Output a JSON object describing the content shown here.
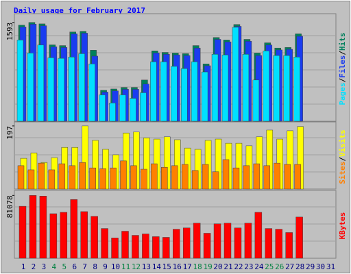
{
  "chart_data": [
    {
      "type": "bar",
      "title": "Daily usage for February 2017",
      "legend_separator": "/",
      "ylim": [
        0,
        1690
      ],
      "yticks": [
        1593
      ],
      "series": [
        {
          "name": "Hits",
          "color": "#00805c",
          "values": [
            1550,
            1593,
            1570,
            1232,
            1220,
            1440,
            1450,
            1145,
            500,
            520,
            545,
            545,
            665,
            1135,
            1110,
            1100,
            1090,
            1220,
            925,
            1350,
            1310,
            1560,
            1320,
            1100,
            1265,
            1180,
            1190,
            1410,
            null,
            null,
            null
          ]
        },
        {
          "name": "Files",
          "color": "#1a3cf0",
          "values": [
            1520,
            1565,
            1540,
            1200,
            1190,
            1410,
            1420,
            1050,
            470,
            490,
            515,
            515,
            600,
            1100,
            1080,
            1070,
            1060,
            1180,
            895,
            1320,
            1280,
            1530,
            1290,
            1060,
            1230,
            1150,
            1160,
            1370,
            null,
            null,
            null
          ]
        },
        {
          "name": "Pages",
          "color": "#00e0ff",
          "values": [
            1310,
            1100,
            1230,
            1025,
            1015,
            1035,
            1090,
            925,
            425,
            295,
            425,
            370,
            460,
            960,
            960,
            885,
            850,
            960,
            795,
            1080,
            1070,
            1515,
            1080,
            665,
            1135,
            1060,
            1060,
            1035,
            null,
            null,
            null
          ]
        }
      ]
    },
    {
      "type": "bar",
      "legend_separator": "/",
      "ylim": [
        0,
        201
      ],
      "yticks": [
        197
      ],
      "series": [
        {
          "name": "Visits",
          "color": "#ffff00",
          "values": [
            96,
            113,
            83,
            98,
            130,
            130,
            197,
            152,
            124,
            107,
            175,
            178,
            160,
            156,
            163,
            154,
            128,
            124,
            152,
            156,
            143,
            143,
            135,
            163,
            184,
            156,
            182,
            195,
            null,
            null,
            null
          ]
        },
        {
          "name": "Sites",
          "color": "#ff8000",
          "values": [
            73,
            60,
            81,
            60,
            79,
            73,
            83,
            66,
            64,
            66,
            88,
            73,
            62,
            79,
            68,
            73,
            77,
            58,
            77,
            54,
            92,
            66,
            73,
            79,
            73,
            81,
            77,
            77,
            null,
            null,
            null
          ]
        }
      ]
    },
    {
      "type": "bar",
      "ylim": [
        0,
        84000
      ],
      "yticks": [
        81078
      ],
      "categories": [
        "1",
        "2",
        "3",
        "4",
        "5",
        "6",
        "7",
        "8",
        "9",
        "10",
        "11",
        "12",
        "13",
        "14",
        "15",
        "16",
        "17",
        "18",
        "19",
        "20",
        "21",
        "22",
        "23",
        "24",
        "25",
        "26",
        "27",
        "28",
        "29",
        "30",
        "31"
      ],
      "tick_colors": [
        "#000080",
        "#000080",
        "#000080",
        "#008040",
        "#008040",
        "#000080",
        "#000080",
        "#000080",
        "#000080",
        "#000080",
        "#008040",
        "#008040",
        "#000080",
        "#000080",
        "#000080",
        "#000080",
        "#000080",
        "#008040",
        "#008040",
        "#000080",
        "#000080",
        "#000080",
        "#000080",
        "#000080",
        "#008040",
        "#008040",
        "#000080",
        "#000080",
        "#000080",
        "#000080",
        "#000080"
      ],
      "series": [
        {
          "name": "KBytes",
          "color": "#ff0000",
          "values": [
            67100,
            81078,
            80200,
            57500,
            59300,
            75800,
            60200,
            54100,
            38400,
            26200,
            34900,
            29600,
            31400,
            27900,
            27000,
            37500,
            39200,
            45300,
            32300,
            44500,
            45300,
            39200,
            45300,
            59300,
            38400,
            37500,
            33200,
            53200,
            null,
            null,
            null
          ]
        }
      ]
    }
  ]
}
